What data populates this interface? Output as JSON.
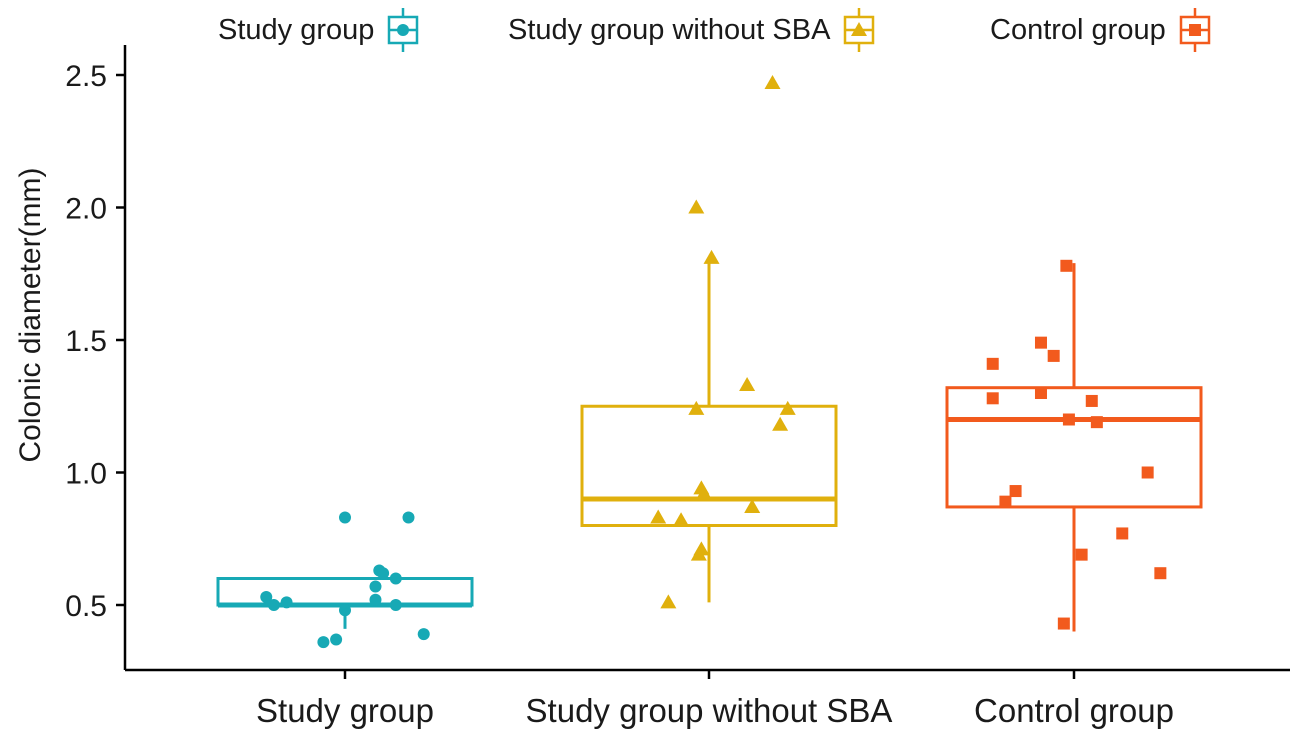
{
  "chart_data": {
    "type": "box",
    "ylabel": "Colonic diameter(mm)",
    "xlabel": "",
    "ylim": [
      0.25,
      2.6
    ],
    "yticks": [
      "0.5",
      "1.0",
      "1.5",
      "2.0",
      "2.5"
    ],
    "grid": false,
    "legend_position": "top",
    "categories": [
      "Study group",
      "Study group without SBA",
      "Control group"
    ],
    "series": [
      {
        "name": "Study group",
        "color": "#17A9B5",
        "marker": "circle",
        "box": {
          "lower_whisker": 0.41,
          "q1": 0.5,
          "median": 0.5,
          "q3": 0.6,
          "upper_whisker": 0.6
        },
        "points": [
          {
            "x_offset": 0.0,
            "y": 0.83
          },
          {
            "x_offset": 0.5,
            "y": 0.83
          },
          {
            "x_offset": 0.27,
            "y": 0.63
          },
          {
            "x_offset": 0.3,
            "y": 0.62
          },
          {
            "x_offset": 0.4,
            "y": 0.6
          },
          {
            "x_offset": 0.24,
            "y": 0.57
          },
          {
            "x_offset": -0.62,
            "y": 0.53
          },
          {
            "x_offset": -0.46,
            "y": 0.51
          },
          {
            "x_offset": 0.24,
            "y": 0.52
          },
          {
            "x_offset": -0.56,
            "y": 0.5
          },
          {
            "x_offset": 0.4,
            "y": 0.5
          },
          {
            "x_offset": 0.0,
            "y": 0.48
          },
          {
            "x_offset": 0.62,
            "y": 0.39
          },
          {
            "x_offset": -0.07,
            "y": 0.37
          },
          {
            "x_offset": -0.17,
            "y": 0.36
          }
        ]
      },
      {
        "name": "Study group without SBA",
        "color": "#E0B00D",
        "marker": "triangle",
        "box": {
          "lower_whisker": 0.51,
          "q1": 0.8,
          "median": 0.9,
          "q3": 1.25,
          "upper_whisker": 1.81
        },
        "points": [
          {
            "x_offset": 0.5,
            "y": 2.47
          },
          {
            "x_offset": -0.1,
            "y": 2.0
          },
          {
            "x_offset": 0.02,
            "y": 1.81
          },
          {
            "x_offset": 0.3,
            "y": 1.33
          },
          {
            "x_offset": -0.1,
            "y": 1.24
          },
          {
            "x_offset": 0.62,
            "y": 1.24
          },
          {
            "x_offset": 0.56,
            "y": 1.18
          },
          {
            "x_offset": -0.06,
            "y": 0.94
          },
          {
            "x_offset": -0.04,
            "y": 0.92
          },
          {
            "x_offset": 0.34,
            "y": 0.87
          },
          {
            "x_offset": -0.4,
            "y": 0.83
          },
          {
            "x_offset": -0.22,
            "y": 0.82
          },
          {
            "x_offset": -0.06,
            "y": 0.71
          },
          {
            "x_offset": -0.08,
            "y": 0.69
          },
          {
            "x_offset": -0.32,
            "y": 0.51
          }
        ]
      },
      {
        "name": "Control group",
        "color": "#F25A1D",
        "marker": "square",
        "box": {
          "lower_whisker": 0.4,
          "q1": 0.87,
          "median": 1.2,
          "q3": 1.32,
          "upper_whisker": 1.79
        },
        "points": [
          {
            "x_offset": -0.06,
            "y": 1.78
          },
          {
            "x_offset": -0.26,
            "y": 1.49
          },
          {
            "x_offset": -0.16,
            "y": 1.44
          },
          {
            "x_offset": -0.64,
            "y": 1.41
          },
          {
            "x_offset": -0.26,
            "y": 1.3
          },
          {
            "x_offset": -0.64,
            "y": 1.28
          },
          {
            "x_offset": 0.14,
            "y": 1.27
          },
          {
            "x_offset": -0.04,
            "y": 1.2
          },
          {
            "x_offset": 0.18,
            "y": 1.19
          },
          {
            "x_offset": 0.58,
            "y": 1.0
          },
          {
            "x_offset": -0.46,
            "y": 0.93
          },
          {
            "x_offset": -0.54,
            "y": 0.89
          },
          {
            "x_offset": 0.38,
            "y": 0.77
          },
          {
            "x_offset": 0.06,
            "y": 0.69
          },
          {
            "x_offset": 0.68,
            "y": 0.62
          },
          {
            "x_offset": -0.08,
            "y": 0.43
          }
        ]
      }
    ]
  }
}
